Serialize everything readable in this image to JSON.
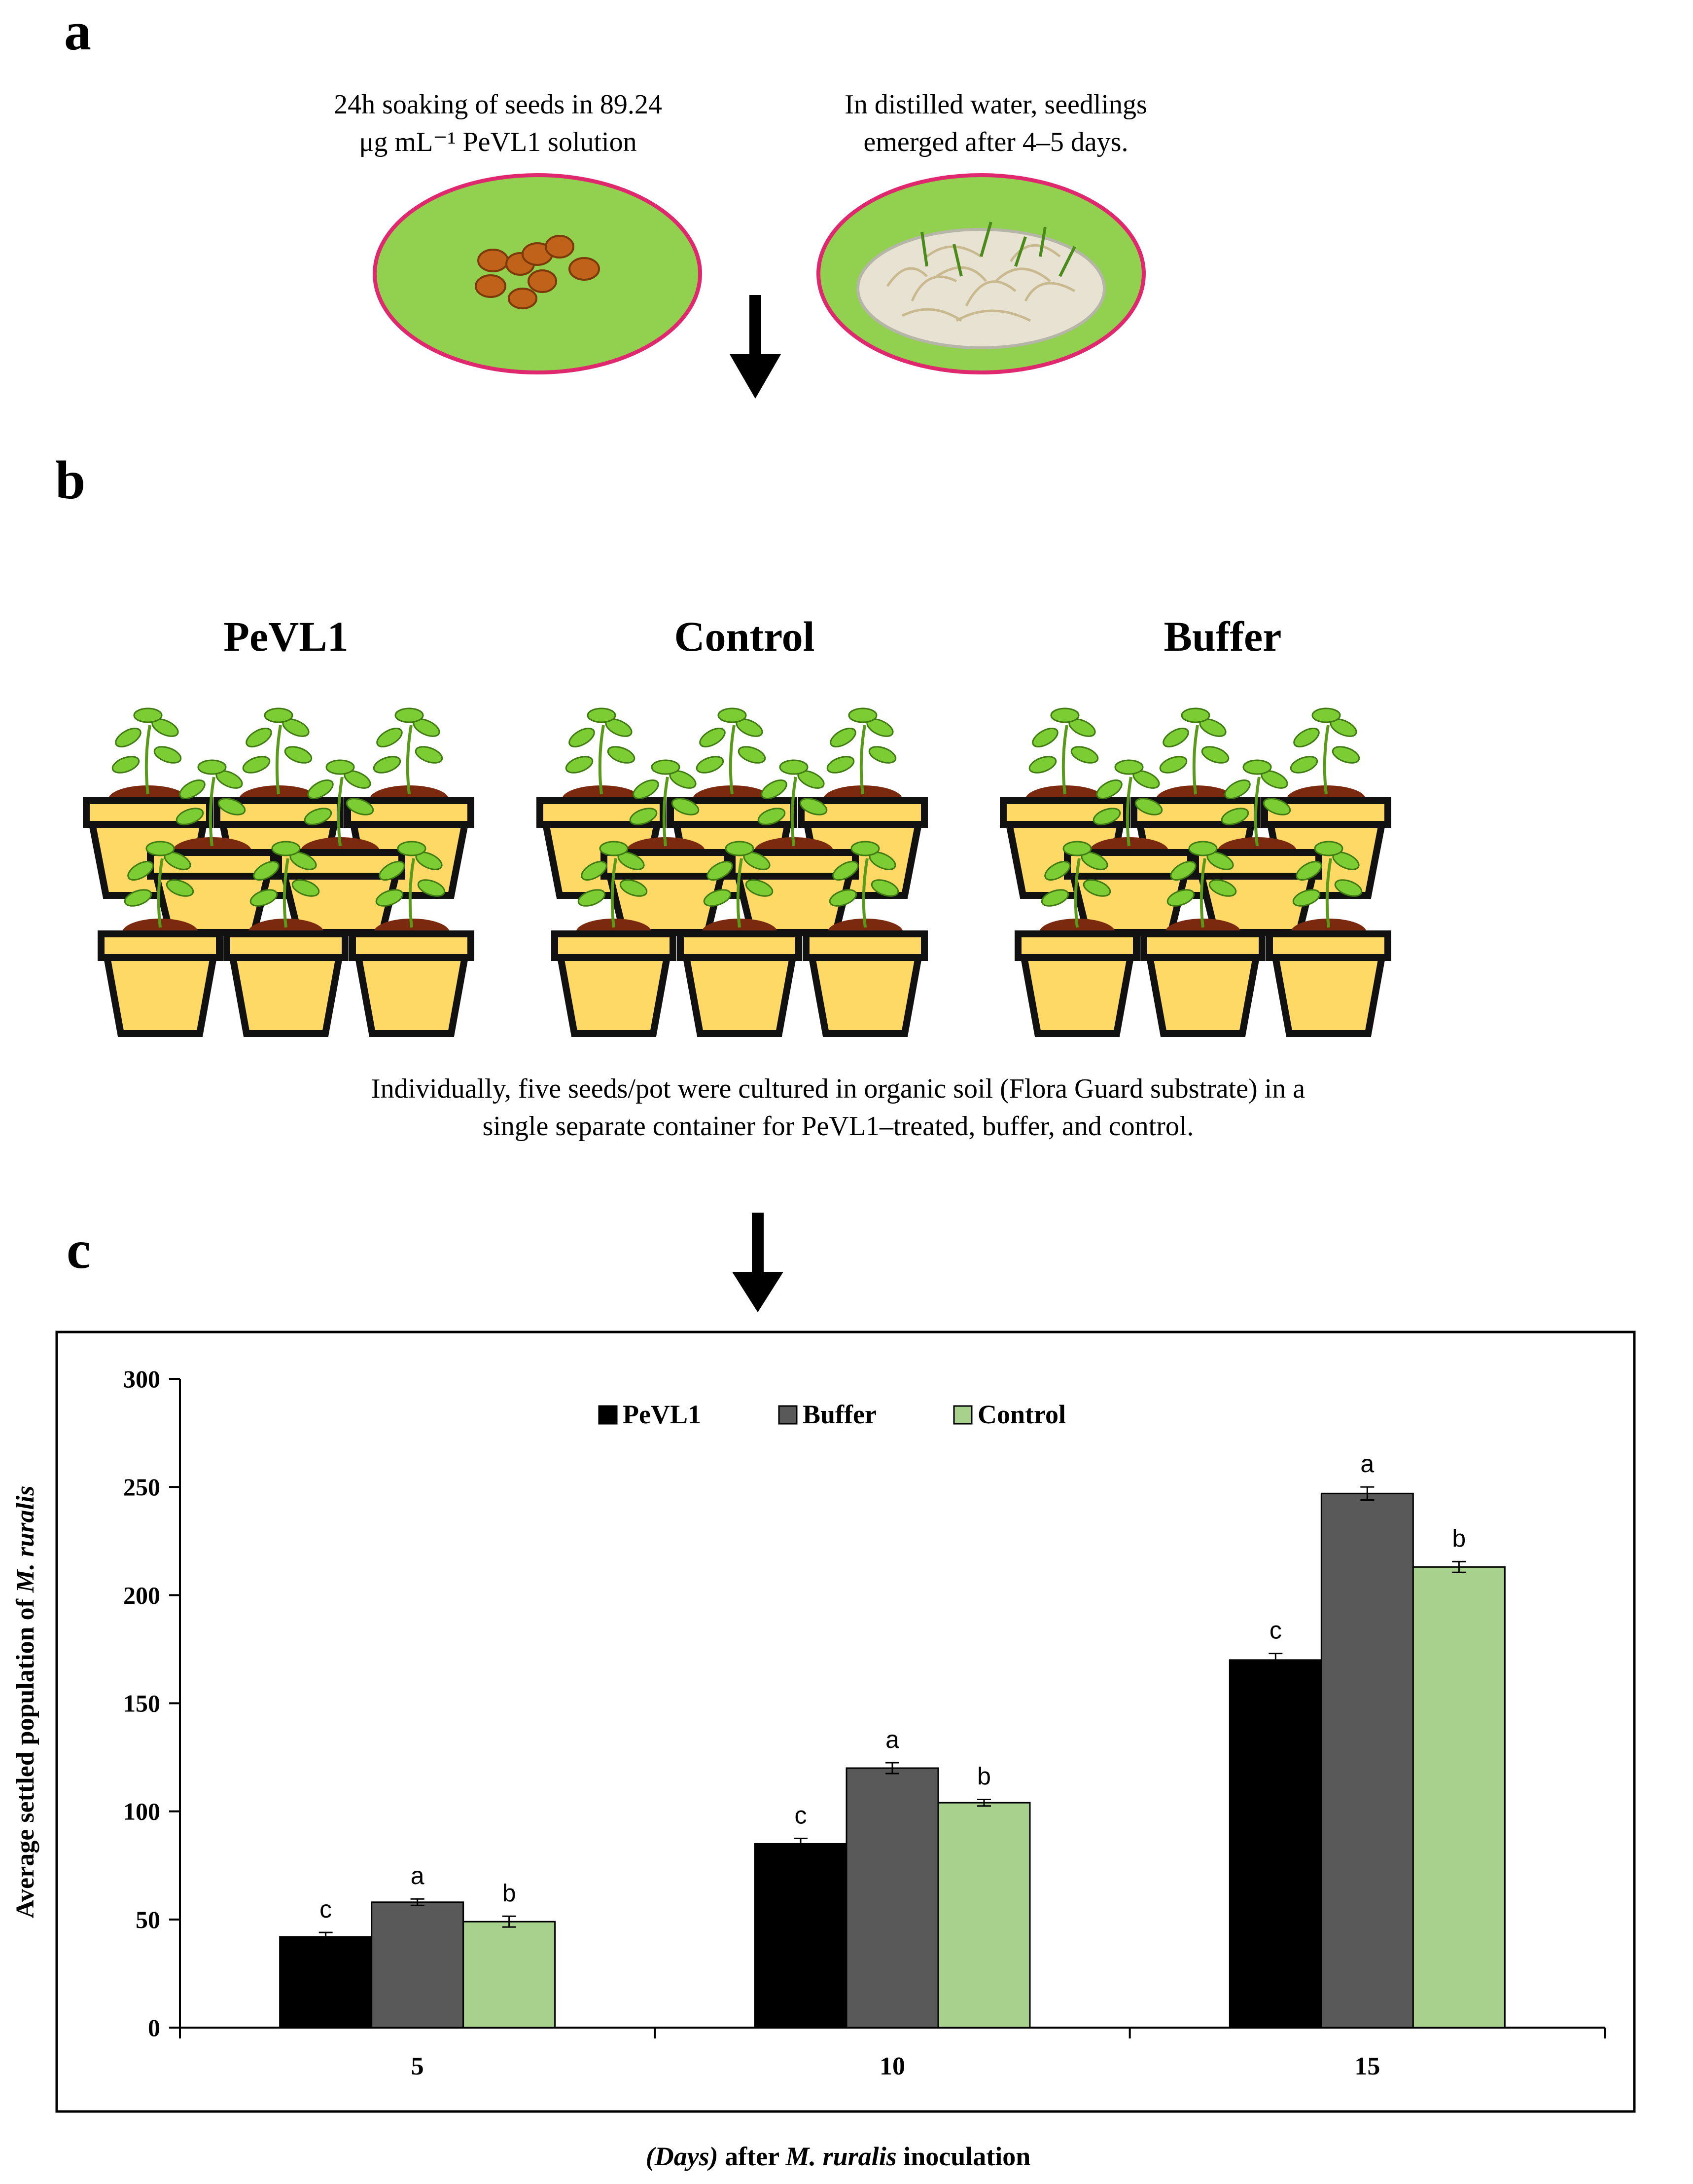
{
  "panels": {
    "a": "a",
    "b": "b",
    "c": "c"
  },
  "panel_a": {
    "caption_left_line1": "24h soaking of seeds in 89.24",
    "caption_left_line2": "μg mL⁻¹  PeVL1 solution",
    "caption_right_line1": "In distilled water, seedlings",
    "caption_right_line2": "emerged after 4–5 days."
  },
  "panel_b": {
    "groups": [
      "PeVL1",
      "Control",
      "Buffer"
    ],
    "caption_line1": "Individually,  five seeds/pot were cultured in organic soil (Flora Guard substrate) in a",
    "caption_line2": "single separate container for PeVL1–treated, buffer, and control."
  },
  "colors": {
    "pevl1": "#000000",
    "buffer": "#595959",
    "control": "#a9d18e",
    "dish": "#92d050",
    "dish_border": "#e0286e",
    "pot": "#ffd966",
    "soil": "#7b2a10",
    "leaf": "#7ccd33"
  },
  "chart_data": {
    "type": "bar",
    "title": "",
    "categories": [
      "5",
      "10",
      "15"
    ],
    "series": [
      {
        "name": "PeVL1",
        "values": [
          42,
          85,
          170
        ],
        "errors": [
          2,
          2.5,
          3
        ],
        "letters": [
          "c",
          "c",
          "c"
        ]
      },
      {
        "name": "Buffer",
        "values": [
          58,
          120,
          247
        ],
        "errors": [
          1.5,
          2.5,
          3
        ],
        "letters": [
          "a",
          "a",
          "a"
        ]
      },
      {
        "name": "Control",
        "values": [
          49,
          104,
          213
        ],
        "errors": [
          2.5,
          1.5,
          2.5
        ],
        "letters": [
          "b",
          "b",
          "b"
        ]
      }
    ],
    "yticks": [
      "0",
      "50",
      "100",
      "150",
      "200",
      "250",
      "300"
    ],
    "ylim": [
      0,
      300
    ],
    "ylabel_prefix": "Average settled population of ",
    "ylabel_species": "M. ruralis",
    "xlabel_days": "(Days)",
    "xlabel_mid": " after ",
    "xlabel_species": "M. ruralis",
    "xlabel_end": "  inoculation",
    "legend_position": "top-center"
  }
}
